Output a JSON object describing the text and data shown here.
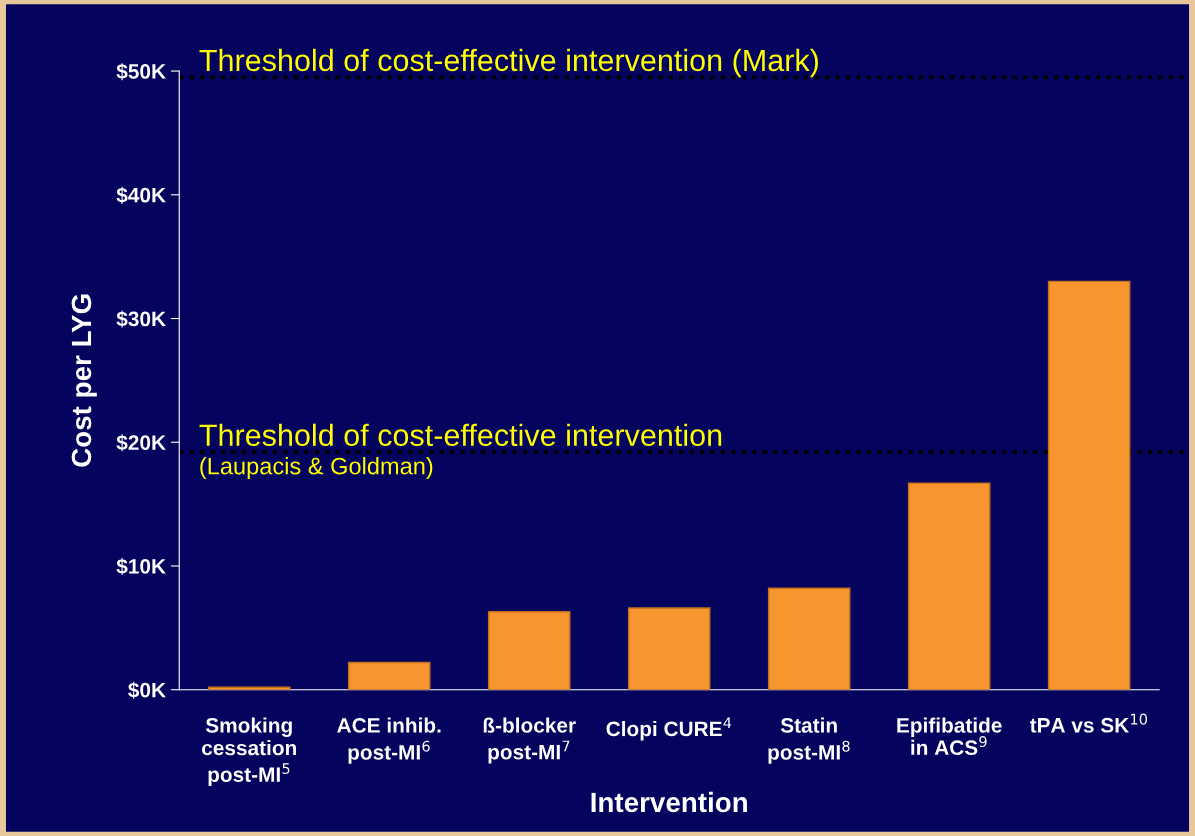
{
  "chart_data": {
    "type": "bar",
    "xlabel": "Intervention",
    "ylabel": "Cost per LYG",
    "categories": [
      "Smoking\ncessation\npost-MI$^{5}$",
      "ACE inhib.\npost-MI$^{6}$",
      "ß-blocker\npost-MI$^{7}$",
      "Clopi CURE$^{4}$",
      "Statin\npost-MI$^{8}$",
      "Epifibatide\nin ACS$^{9}$",
      "tPA vs SK$^{10}$"
    ],
    "values": [
      0.2,
      2.2,
      6.3,
      6.6,
      8.2,
      16.7,
      33
    ],
    "color": "#f7962e",
    "ylim": [
      0,
      50
    ],
    "yticks": [
      {
        "value": 0,
        "label": "$0K"
      },
      {
        "value": 10,
        "label": "$10K"
      },
      {
        "value": 20,
        "label": "$20K"
      },
      {
        "value": 30,
        "label": "$30K"
      },
      {
        "value": 40,
        "label": "$40K"
      },
      {
        "value": 50,
        "label": "$50K"
      }
    ],
    "ref_lines": [
      {
        "axis": "y",
        "value": 49.5,
        "label": "Threshold of cost-effective intervention (Mark)",
        "color": "#000000",
        "line_style": "dotted"
      },
      {
        "axis": "y",
        "value": 19.2,
        "label": "Threshold of cost-effective intervention\n(Laupacis & Goldman)",
        "color": "#000000",
        "line_style": "dotted"
      }
    ],
    "grid": false,
    "legend": false
  }
}
